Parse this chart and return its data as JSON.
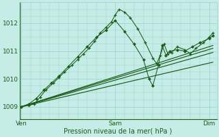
{
  "bg_color": "#c5ece6",
  "grid_color": "#9dd4ce",
  "line_color": "#1a5c1a",
  "xlabel": "Pression niveau de la mer( hPa )",
  "xlabel_color": "#1a5c1a",
  "tick_color": "#1a5c1a",
  "yticks": [
    1009,
    1010,
    1011,
    1012
  ],
  "xtick_labels": [
    "Ven",
    "Sam",
    "Dim"
  ],
  "xtick_pos": [
    0.0,
    0.5,
    1.0
  ],
  "ylim": [
    1008.55,
    1012.75
  ],
  "xlim": [
    -0.01,
    1.04
  ],
  "line1_x": [
    0.0,
    0.04,
    0.07,
    0.1,
    0.13,
    0.17,
    0.2,
    0.23,
    0.27,
    0.3,
    0.33,
    0.36,
    0.39,
    0.42,
    0.45,
    0.48,
    0.5,
    0.52,
    0.55,
    0.58,
    0.62,
    0.66,
    0.7,
    0.72,
    0.74,
    0.76,
    0.78,
    0.8,
    0.83,
    0.87,
    0.9,
    0.93,
    0.97,
    1.0,
    1.02
  ],
  "line1_y": [
    1009.0,
    1009.05,
    1009.1,
    1009.35,
    1009.6,
    1009.85,
    1010.05,
    1010.25,
    1010.5,
    1010.7,
    1010.9,
    1011.1,
    1011.35,
    1011.65,
    1011.85,
    1012.05,
    1012.3,
    1012.5,
    1012.4,
    1012.2,
    1011.8,
    1011.3,
    1010.75,
    1010.55,
    1010.85,
    1011.25,
    1010.9,
    1010.95,
    1011.15,
    1011.05,
    1010.9,
    1011.1,
    1011.3,
    1011.5,
    1011.65
  ],
  "line2_x": [
    0.0,
    0.04,
    0.08,
    0.12,
    0.16,
    0.2,
    0.25,
    0.3,
    0.35,
    0.4,
    0.45,
    0.5,
    0.55,
    0.6,
    0.65,
    0.68,
    0.7,
    0.73,
    0.75,
    0.77,
    0.79,
    0.83,
    0.87,
    0.91,
    0.95,
    1.0,
    1.02
  ],
  "line2_y": [
    1009.0,
    1009.1,
    1009.3,
    1009.6,
    1009.85,
    1010.1,
    1010.45,
    1010.8,
    1011.15,
    1011.5,
    1011.75,
    1012.1,
    1011.7,
    1011.25,
    1010.7,
    1010.0,
    1009.75,
    1010.5,
    1011.2,
    1010.85,
    1011.0,
    1011.05,
    1011.0,
    1011.15,
    1011.3,
    1011.45,
    1011.55
  ],
  "line3_x": [
    0.0,
    1.02
  ],
  "line3_y": [
    1009.0,
    1011.2
  ],
  "line4_x": [
    0.0,
    1.02
  ],
  "line4_y": [
    1009.0,
    1011.1
  ],
  "line5_x": [
    0.0,
    1.02
  ],
  "line5_y": [
    1009.0,
    1010.95
  ],
  "line6_x": [
    0.0,
    1.02
  ],
  "line6_y": [
    1009.0,
    1010.6
  ]
}
